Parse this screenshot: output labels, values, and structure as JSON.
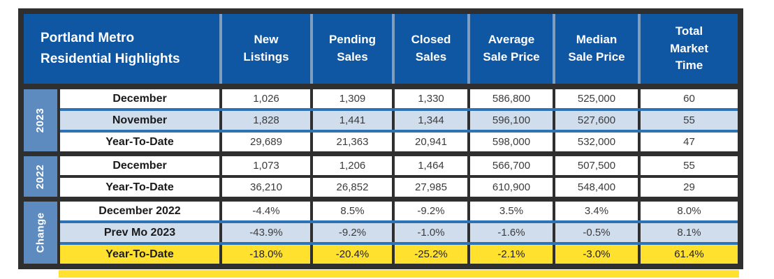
{
  "chart_data": {
    "type": "table",
    "title": "Portland Metro Residential Highlights",
    "title_lines": {
      "line1": "Portland Metro",
      "line2": "Residential Highlights"
    },
    "columns": [
      "New Listings",
      "Pending Sales",
      "Closed Sales",
      "Average Sale Price",
      "Median Sale Price",
      "Total Market Time"
    ],
    "sections": [
      {
        "group": "2023",
        "rows": [
          {
            "label": "December",
            "values": [
              "1,026",
              "1,309",
              "1,330",
              "586,800",
              "525,000",
              "60"
            ]
          },
          {
            "label": "November",
            "values": [
              "1,828",
              "1,441",
              "1,344",
              "596,100",
              "527,600",
              "55"
            ]
          },
          {
            "label": "Year-To-Date",
            "values": [
              "29,689",
              "21,363",
              "20,941",
              "598,000",
              "532,000",
              "47"
            ]
          }
        ]
      },
      {
        "group": "2022",
        "rows": [
          {
            "label": "December",
            "values": [
              "1,073",
              "1,206",
              "1,464",
              "566,700",
              "507,500",
              "55"
            ]
          },
          {
            "label": "Year-To-Date",
            "values": [
              "36,210",
              "26,852",
              "27,985",
              "610,900",
              "548,400",
              "29"
            ]
          }
        ]
      },
      {
        "group": "Change",
        "rows": [
          {
            "label": "December 2022",
            "values": [
              "-4.4%",
              "8.5%",
              "-9.2%",
              "3.5%",
              "3.4%",
              "8.0%"
            ]
          },
          {
            "label": "Prev Mo 2023",
            "values": [
              "-43.9%",
              "-9.2%",
              "-1.0%",
              "-1.6%",
              "-0.5%",
              "8.1%"
            ]
          },
          {
            "label": "Year-To-Date",
            "values": [
              "-18.0%",
              "-20.4%",
              "-25.2%",
              "-2.1%",
              "-3.0%",
              "61.4%"
            ]
          }
        ]
      }
    ]
  },
  "colors": {
    "header_blue": "#0f57a3",
    "header_divider": "#7f9dbe",
    "group_label_blue": "#5e8bbf",
    "row_highlight_blue": "#cfdded",
    "row_separator_blue": "#2e74b5",
    "highlight_yellow": "#ffe12e",
    "frame_dark": "#2f2f2f"
  }
}
